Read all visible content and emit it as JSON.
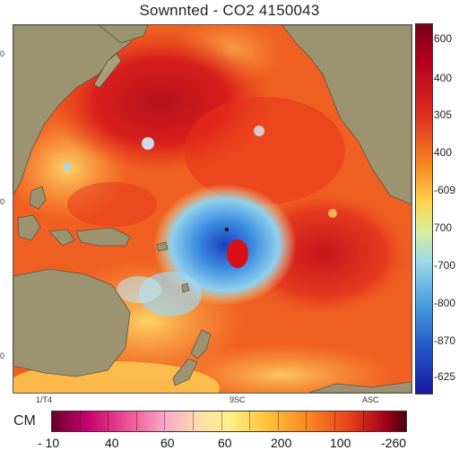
{
  "title": "Sownnted - CO2 4150043",
  "left_ticks": [
    "0",
    "0",
    "0"
  ],
  "bottom_ticks": [
    "1/T4",
    "9SC",
    "ASC"
  ],
  "colorbar_labels": [
    "600",
    "400",
    "305",
    "400",
    "-609",
    "700",
    "-700",
    "-800",
    "-870",
    "-625"
  ],
  "legend": {
    "label": "CM",
    "tick_labels": [
      "- 10",
      "40",
      "60",
      "60",
      "200",
      "100",
      "-260"
    ]
  },
  "colors": {
    "ocean_hot": "#e8301c",
    "ocean_warm": "#f88a26",
    "ocean_mild": "#ffd04a",
    "anomaly_cold": "#2b7fd8",
    "land": "#9c9470"
  }
}
